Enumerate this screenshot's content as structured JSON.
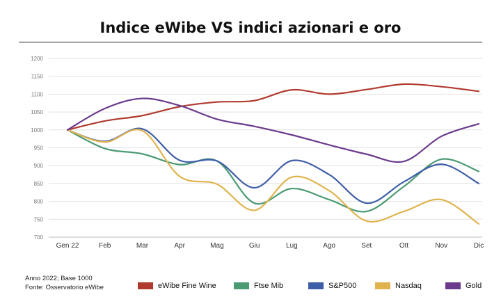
{
  "title": "Indice eWibe VS indici azionari e oro",
  "notes": {
    "line1": "Anno 2022; Base 1000",
    "line2": "Fonte: Osservatorio eWibe"
  },
  "chart_data": {
    "type": "line",
    "title": "Indice eWibe VS indici azionari e oro",
    "xlabel": "",
    "ylabel": "",
    "categories": [
      "Gen 22",
      "Feb",
      "Mar",
      "Apr",
      "Mag",
      "Giu",
      "Lug",
      "Ago",
      "Set",
      "Ott",
      "Nov",
      "Dic"
    ],
    "ylim": [
      700,
      1200
    ],
    "yticks": [
      700,
      750,
      800,
      850,
      900,
      950,
      1000,
      1050,
      1100,
      1150,
      1200
    ],
    "grid": true,
    "legend_position": "bottom",
    "series": [
      {
        "name": "eWibe Fine Wine",
        "color": "#b03a2e",
        "values": [
          1000,
          1025,
          1040,
          1065,
          1078,
          1082,
          1112,
          1100,
          1113,
          1128,
          1121,
          1108
        ]
      },
      {
        "name": "Ftse Mib",
        "color": "#4a9a72",
        "values": [
          1000,
          948,
          933,
          903,
          913,
          795,
          836,
          805,
          772,
          842,
          918,
          884
        ]
      },
      {
        "name": "S&P500",
        "color": "#3f5ea8",
        "values": [
          1000,
          968,
          1003,
          915,
          913,
          838,
          914,
          875,
          795,
          855,
          904,
          850
        ]
      },
      {
        "name": "Nasdaq",
        "color": "#e0b34e",
        "values": [
          1000,
          966,
          998,
          870,
          848,
          775,
          868,
          830,
          745,
          772,
          805,
          737
        ]
      },
      {
        "name": "Gold",
        "color": "#6b3a8c",
        "values": [
          1000,
          1060,
          1088,
          1068,
          1030,
          1010,
          986,
          958,
          932,
          912,
          982,
          1017
        ]
      }
    ]
  }
}
